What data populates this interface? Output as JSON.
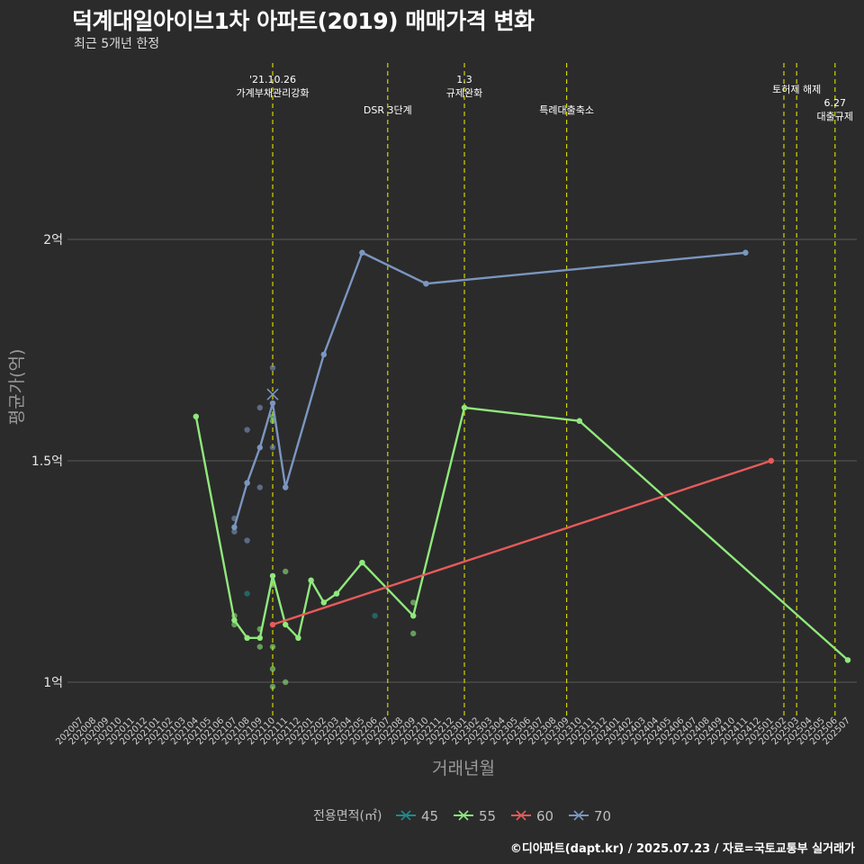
{
  "header": {
    "title": "덕계대일아이브1차 아파트(2019) 매매가격 변화",
    "subtitle": "최근 5개년 한정"
  },
  "caption": "©디아파트(dapt.kr) / 2025.07.23 / 자료=국토교통부 실거래가",
  "colors": {
    "background": "#2b2b2b",
    "grid": "#5a5a5a",
    "event_line": "#d4d400",
    "s45": "#1f8a8a",
    "s55": "#90e87c",
    "s60": "#e85a5a",
    "s70": "#7b96c0"
  },
  "chart_data": {
    "type": "line",
    "title": "덕계대일아이브1차 아파트(2019) 매매가격 변화",
    "xlabel": "거래년월",
    "ylabel": "평균가(억)",
    "ylim": [
      0.93,
      2.35
    ],
    "yticks": [
      {
        "value": 1.0,
        "label": "1억"
      },
      {
        "value": 1.5,
        "label": "1.5억"
      },
      {
        "value": 2.0,
        "label": "2억"
      }
    ],
    "categories": [
      "202007",
      "202008",
      "202009",
      "202010",
      "202011",
      "202012",
      "202101",
      "202102",
      "202103",
      "202104",
      "202105",
      "202106",
      "202107",
      "202108",
      "202109",
      "202110",
      "202111",
      "202112",
      "202201",
      "202202",
      "202203",
      "202204",
      "202205",
      "202206",
      "202207",
      "202208",
      "202209",
      "202210",
      "202211",
      "202212",
      "202301",
      "202302",
      "202303",
      "202304",
      "202305",
      "202306",
      "202307",
      "202308",
      "202309",
      "202310",
      "202311",
      "202312",
      "202401",
      "202402",
      "202403",
      "202404",
      "202405",
      "202406",
      "202407",
      "202408",
      "202409",
      "202410",
      "202411",
      "202412",
      "202501",
      "202502",
      "202503",
      "202504",
      "202505",
      "202506",
      "202507"
    ],
    "legend": {
      "title": "전용면적(㎡)",
      "position": "bottom",
      "entries": [
        "45",
        "55",
        "60",
        "70"
      ]
    },
    "events": [
      {
        "x": "202110",
        "label_lines": [
          "'21.10.26",
          "가계부채관리강화"
        ],
        "label_row": 0
      },
      {
        "x": "202207",
        "label_lines": [
          "DSR 3단계"
        ],
        "label_row": 2
      },
      {
        "x": "202301",
        "label_lines": [
          "1.3",
          "규제완화"
        ],
        "label_row": 0
      },
      {
        "x": "202309",
        "label_lines": [
          "특례대출축소"
        ],
        "label_row": 2
      },
      {
        "x": "202502",
        "label_lines": [],
        "label_row": 1
      },
      {
        "x": "202503",
        "label_lines": [
          "토허제 해제"
        ],
        "label_row": 1
      },
      {
        "x": "202506",
        "label_lines": [
          "6.27",
          "대출규제"
        ],
        "label_row": 1.5
      }
    ],
    "series": [
      {
        "name": "45",
        "color_key": "s45",
        "line": [],
        "scatter": [
          {
            "x": "202108",
            "y": 1.2
          },
          {
            "x": "202206",
            "y": 1.15
          }
        ]
      },
      {
        "name": "55",
        "color_key": "s55",
        "line": [
          {
            "x": "202104",
            "y": 1.6
          },
          {
            "x": "202107",
            "y": 1.14
          },
          {
            "x": "202108",
            "y": 1.1
          },
          {
            "x": "202109",
            "y": 1.1
          },
          {
            "x": "202110",
            "y": 1.24
          },
          {
            "x": "202111",
            "y": 1.13
          },
          {
            "x": "202112",
            "y": 1.1
          },
          {
            "x": "202201",
            "y": 1.23
          },
          {
            "x": "202202",
            "y": 1.18
          },
          {
            "x": "202203",
            "y": 1.2
          },
          {
            "x": "202205",
            "y": 1.27
          },
          {
            "x": "202209",
            "y": 1.15
          },
          {
            "x": "202301",
            "y": 1.62
          },
          {
            "x": "202310",
            "y": 1.59
          },
          {
            "x": "202507",
            "y": 1.05
          }
        ],
        "scatter": [
          {
            "x": "202104",
            "y": 1.6
          },
          {
            "x": "202107",
            "y": 1.15
          },
          {
            "x": "202107",
            "y": 1.13
          },
          {
            "x": "202108",
            "y": 1.1
          },
          {
            "x": "202109",
            "y": 1.12
          },
          {
            "x": "202109",
            "y": 1.08
          },
          {
            "x": "202110",
            "y": 1.6
          },
          {
            "x": "202110",
            "y": 1.59
          },
          {
            "x": "202110",
            "y": 1.22
          },
          {
            "x": "202110",
            "y": 1.08
          },
          {
            "x": "202110",
            "y": 1.03
          },
          {
            "x": "202110",
            "y": 0.99
          },
          {
            "x": "202111",
            "y": 1.25
          },
          {
            "x": "202111",
            "y": 1.0
          },
          {
            "x": "202112",
            "y": 1.1
          },
          {
            "x": "202201",
            "y": 1.23
          },
          {
            "x": "202202",
            "y": 1.18
          },
          {
            "x": "202203",
            "y": 1.2
          },
          {
            "x": "202205",
            "y": 1.27
          },
          {
            "x": "202209",
            "y": 1.18
          },
          {
            "x": "202209",
            "y": 1.11
          },
          {
            "x": "202301",
            "y": 1.62
          },
          {
            "x": "202310",
            "y": 1.59
          },
          {
            "x": "202507",
            "y": 1.05
          }
        ]
      },
      {
        "name": "60",
        "color_key": "s60",
        "line": [
          {
            "x": "202110",
            "y": 1.13
          },
          {
            "x": "202501",
            "y": 1.5
          }
        ],
        "scatter": [
          {
            "x": "202110",
            "y": 1.13
          },
          {
            "x": "202501",
            "y": 1.5
          }
        ]
      },
      {
        "name": "70",
        "color_key": "s70",
        "line": [
          {
            "x": "202107",
            "y": 1.35
          },
          {
            "x": "202108",
            "y": 1.45
          },
          {
            "x": "202109",
            "y": 1.53
          },
          {
            "x": "202110",
            "y": 1.63
          },
          {
            "x": "202111",
            "y": 1.44
          },
          {
            "x": "202202",
            "y": 1.74
          },
          {
            "x": "202205",
            "y": 1.97
          },
          {
            "x": "202210",
            "y": 1.9
          },
          {
            "x": "202411",
            "y": 1.97
          }
        ],
        "scatter": [
          {
            "x": "202107",
            "y": 1.37
          },
          {
            "x": "202107",
            "y": 1.34
          },
          {
            "x": "202108",
            "y": 1.57
          },
          {
            "x": "202108",
            "y": 1.45
          },
          {
            "x": "202108",
            "y": 1.32
          },
          {
            "x": "202109",
            "y": 1.62
          },
          {
            "x": "202109",
            "y": 1.44
          },
          {
            "x": "202110",
            "y": 1.71
          },
          {
            "x": "202110",
            "y": 1.53
          },
          {
            "x": "202111",
            "y": 1.44
          },
          {
            "x": "202202",
            "y": 1.74
          },
          {
            "x": "202205",
            "y": 1.97
          },
          {
            "x": "202210",
            "y": 1.9
          },
          {
            "x": "202411",
            "y": 1.97
          }
        ],
        "highlight": {
          "x": "202110",
          "y": 1.65,
          "marker": "x"
        }
      }
    ]
  }
}
